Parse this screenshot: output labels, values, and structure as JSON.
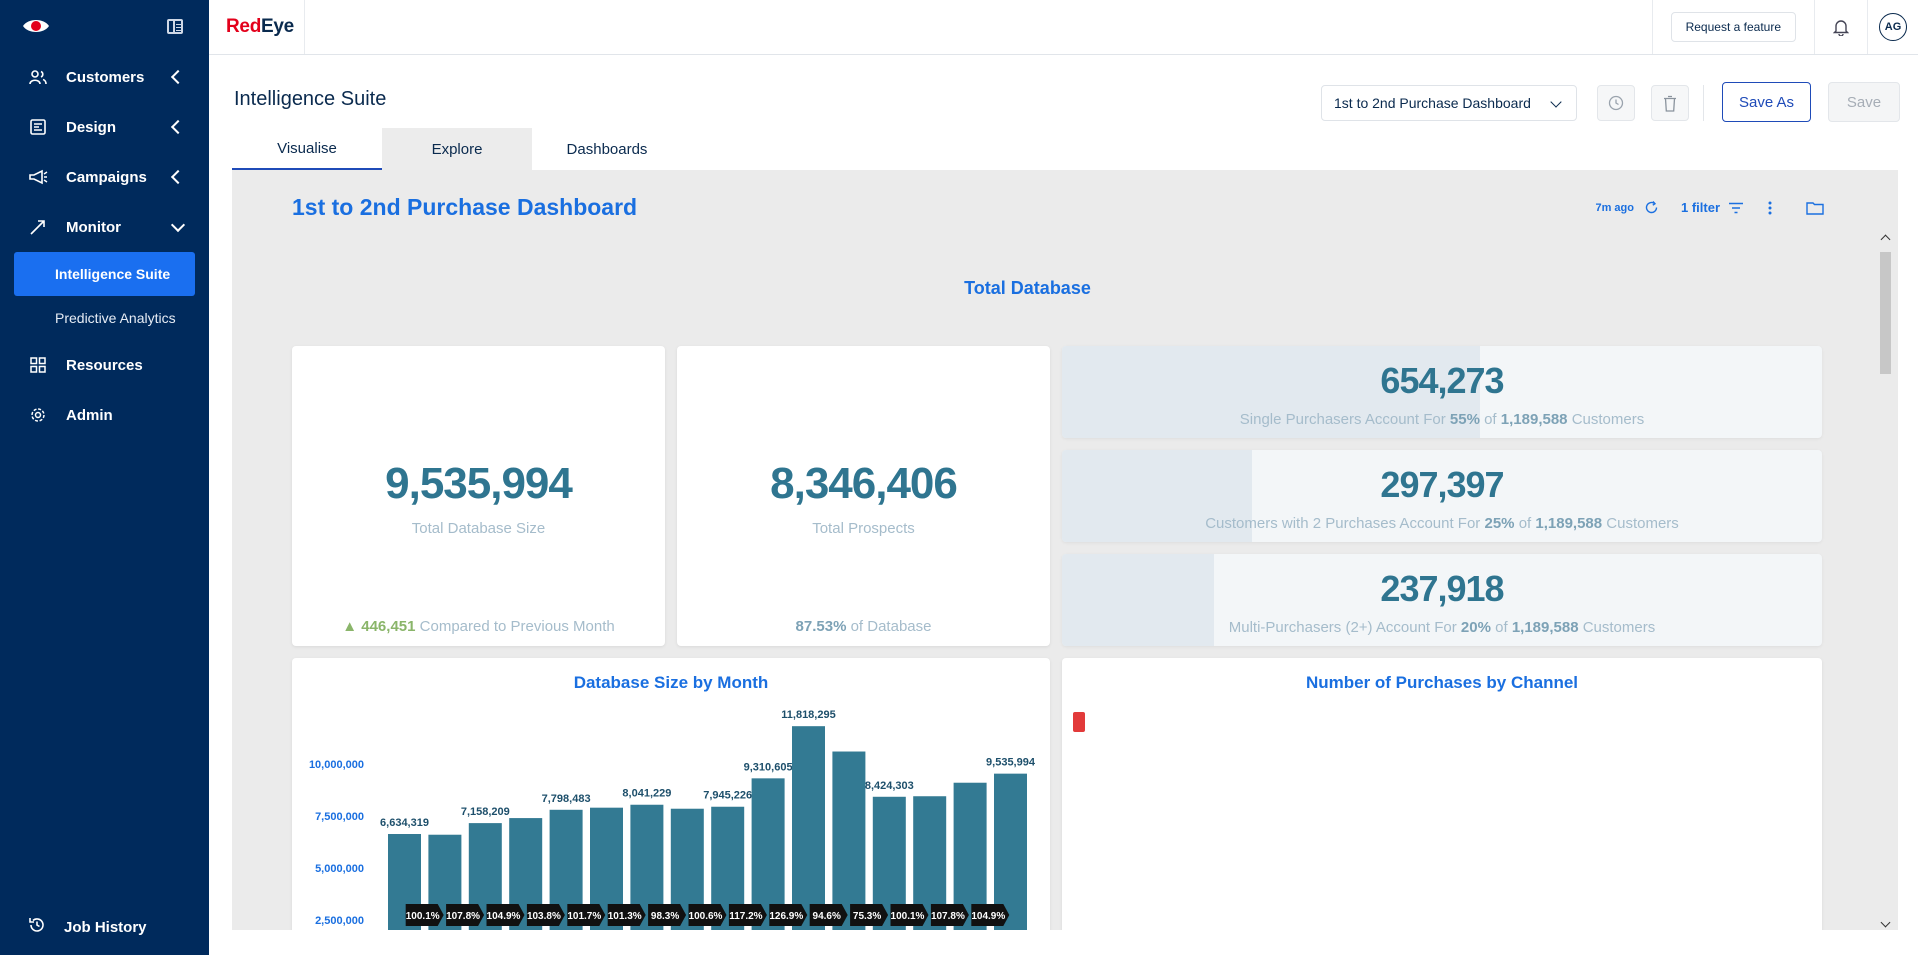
{
  "sidebar": {
    "items": [
      {
        "label": "Customers",
        "icon": "users-icon"
      },
      {
        "label": "Design",
        "icon": "design-icon"
      },
      {
        "label": "Campaigns",
        "icon": "megaphone-icon"
      },
      {
        "label": "Monitor",
        "icon": "trend-icon"
      }
    ],
    "sub_items": [
      {
        "label": "Intelligence Suite",
        "active": true
      },
      {
        "label": "Predictive Analytics",
        "active": false
      }
    ],
    "items2": [
      {
        "label": "Resources",
        "icon": "grid-icon"
      },
      {
        "label": "Admin",
        "icon": "gear-icon"
      }
    ],
    "bottom": {
      "label": "Job History",
      "icon": "history-icon"
    }
  },
  "topbar": {
    "brand_red": "Red",
    "brand_dark": "Eye",
    "request_label": "Request a feature",
    "avatar_initials": "AG"
  },
  "page": {
    "title": "Intelligence Suite",
    "dashboard_select": "1st to 2nd Purchase Dashboard",
    "save_as_label": "Save As",
    "save_label": "Save"
  },
  "tabs": [
    "Visualise",
    "Explore",
    "Dashboards"
  ],
  "dashboard": {
    "title": "1st to 2nd Purchase Dashboard",
    "updated": "7m ago",
    "filters": "1 filter",
    "section_title": "Total Database"
  },
  "kpis": {
    "total_db": {
      "value": "9,535,994",
      "label": "Total Database Size",
      "delta": "446,451",
      "delta_text": "Compared to Previous Month"
    },
    "prospects": {
      "value": "8,346,406",
      "label": "Total Prospects",
      "pct": "87.53%",
      "pct_text": "of Database"
    }
  },
  "bars": [
    {
      "value": "654,273",
      "pre": "Single Purchasers Account For",
      "pct": "55%",
      "of": "of",
      "total": "1,189,588",
      "post": "Customers",
      "fill": 0.55
    },
    {
      "value": "297,397",
      "pre": "Customers with 2 Purchases Account For",
      "pct": "25%",
      "of": "of",
      "total": "1,189,588",
      "post": "Customers",
      "fill": 0.25
    },
    {
      "value": "237,918",
      "pre": "Multi-Purchasers (2+) Account For",
      "pct": "20%",
      "of": "of",
      "total": "1,189,588",
      "post": "Customers",
      "fill": 0.2
    }
  ],
  "chart_data": [
    {
      "type": "bar",
      "title": "Database Size by Month",
      "y_ticks": [
        "10,000,000",
        "7,500,000",
        "5,000,000",
        "2,500,000"
      ],
      "y_tick_values": [
        10000000,
        7500000,
        5000000,
        2500000
      ],
      "values": [
        6634319,
        6600000,
        7158209,
        7400000,
        7798483,
        7900000,
        8041229,
        7850000,
        7945226,
        9310605,
        11818295,
        10600000,
        8424303,
        8450000,
        9100000,
        9535994
      ],
      "value_labels": [
        "6,634,319",
        "",
        "7,158,209",
        "",
        "7,798,483",
        "",
        "8,041,229",
        "",
        "7,945,226",
        "9,310,605",
        "11,818,295",
        "",
        "8,424,303",
        "",
        "",
        "9,535,994"
      ],
      "growth_labels": [
        "100.1%",
        "107.8%",
        "104.9%",
        "103.8%",
        "101.7%",
        "101.3%",
        "98.3%",
        "100.6%",
        "117.2%",
        "126.9%",
        "94.6%",
        "75.3%",
        "100.1%",
        "107.8%",
        "104.9%"
      ],
      "bar_color": "#337a93"
    },
    {
      "type": "bar",
      "title": "Number of Purchases by Channel",
      "legend_color": "#e23a3a"
    }
  ]
}
